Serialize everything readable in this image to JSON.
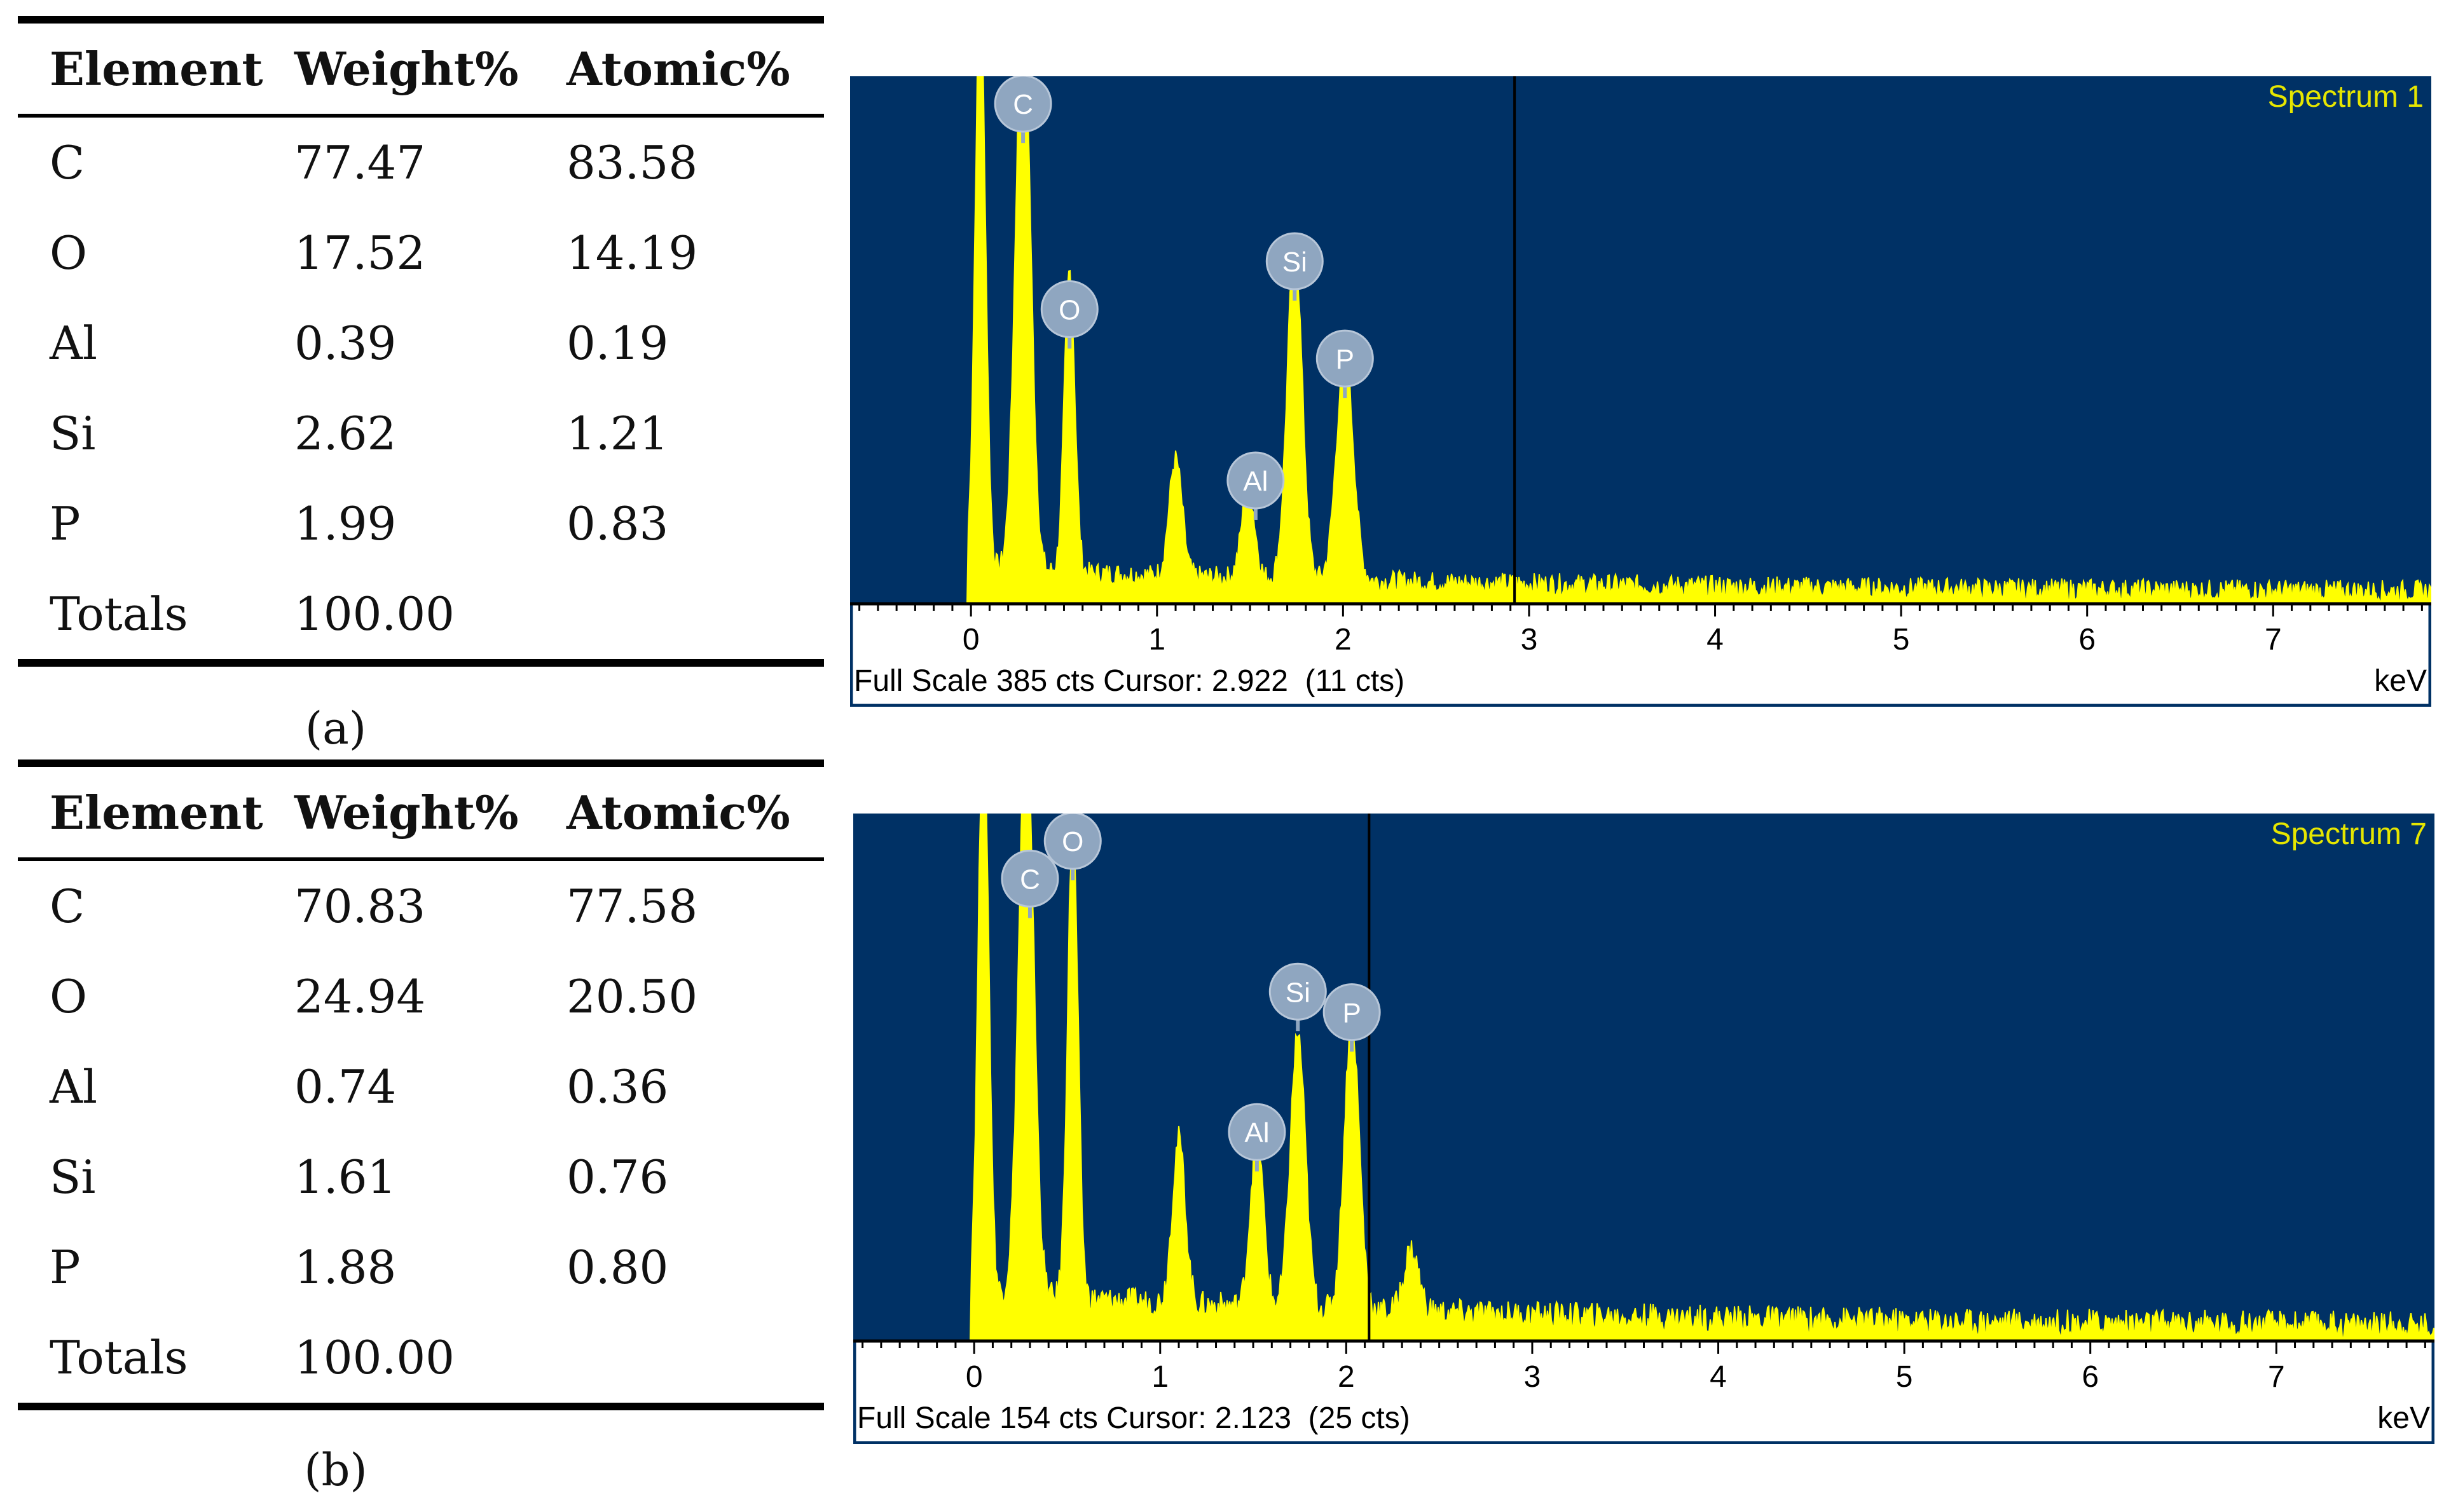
{
  "panels": [
    {
      "caption": "(a)",
      "table": {
        "headers": [
          "Element",
          "Weight%",
          "Atomic%"
        ],
        "rows": [
          {
            "element": "C",
            "weight": "77.47",
            "atomic": "83.58"
          },
          {
            "element": "O",
            "weight": "17.52",
            "atomic": "14.19"
          },
          {
            "element": "Al",
            "weight": "0.39",
            "atomic": "0.19"
          },
          {
            "element": "Si",
            "weight": "2.62",
            "atomic": "1.21"
          },
          {
            "element": "P",
            "weight": "1.99",
            "atomic": "0.83"
          },
          {
            "element": "Totals",
            "weight": "100.00",
            "atomic": ""
          }
        ]
      },
      "spectrum": {
        "title": "Spectrum 1",
        "status": "Full Scale 385 cts Cursor: 2.922  (11 cts)",
        "unit": "keV",
        "cursor": 2.922
      }
    },
    {
      "caption": "(b)",
      "table": {
        "headers": [
          "Element",
          "Weight%",
          "Atomic%"
        ],
        "rows": [
          {
            "element": "C",
            "weight": "70.83",
            "atomic": "77.58"
          },
          {
            "element": "O",
            "weight": "24.94",
            "atomic": "20.50"
          },
          {
            "element": "Al",
            "weight": "0.74",
            "atomic": "0.36"
          },
          {
            "element": "Si",
            "weight": "1.61",
            "atomic": "0.76"
          },
          {
            "element": "P",
            "weight": "1.88",
            "atomic": "0.80"
          },
          {
            "element": "Totals",
            "weight": "100.00",
            "atomic": ""
          }
        ]
      },
      "spectrum": {
        "title": "Spectrum 7",
        "status": "Full Scale 154 cts Cursor: 2.123  (25 cts)",
        "unit": "keV",
        "cursor": 2.123
      }
    }
  ],
  "colors": {
    "plot_bg": "#003165",
    "trace": "#FFFF00",
    "title": "#E6E600",
    "marker_fill": "#8FA6C0"
  },
  "chart_data": [
    {
      "type": "area",
      "title": "Spectrum 1",
      "xlabel": "keV",
      "xticks": [
        0,
        1,
        2,
        3,
        4,
        5,
        6,
        7
      ],
      "xlim": [
        -0.65,
        7.85
      ],
      "ylim": [
        0,
        385
      ],
      "full_scale_cts": 385,
      "cursor": {
        "x": 2.922,
        "cts": 11
      },
      "peaks": [
        {
          "label": "",
          "x": 0.05,
          "y": 420,
          "w": 0.028
        },
        {
          "label": "C",
          "x": 0.28,
          "y": 420,
          "w": 0.04
        },
        {
          "label": "O",
          "x": 0.53,
          "y": 220,
          "w": 0.028
        },
        {
          "label": "",
          "x": 1.1,
          "y": 85,
          "w": 0.035
        },
        {
          "label": "Al",
          "x": 1.49,
          "y": 65,
          "w": 0.035
        },
        {
          "label": "Si",
          "x": 1.74,
          "y": 245,
          "w": 0.04
        },
        {
          "label": "P",
          "x": 2.01,
          "y": 165,
          "w": 0.045
        }
      ],
      "labels": [
        {
          "text": "C",
          "x": 0.28,
          "y": 365
        },
        {
          "text": "O",
          "x": 0.53,
          "y": 215
        },
        {
          "text": "Si",
          "x": 1.74,
          "y": 250
        },
        {
          "text": "P",
          "x": 2.01,
          "y": 179
        },
        {
          "text": "Al",
          "x": 1.53,
          "y": 90
        }
      ]
    },
    {
      "type": "area",
      "title": "Spectrum 7",
      "xlabel": "keV",
      "xticks": [
        0,
        1,
        2,
        3,
        4,
        5,
        6,
        7
      ],
      "xlim": [
        -0.65,
        7.85
      ],
      "ylim": [
        0,
        154
      ],
      "full_scale_cts": 154,
      "cursor": {
        "x": 2.123,
        "cts": 25
      },
      "peaks": [
        {
          "label": "",
          "x": 0.05,
          "y": 170,
          "w": 0.028
        },
        {
          "label": "C",
          "x": 0.28,
          "y": 170,
          "w": 0.04
        },
        {
          "label": "O",
          "x": 0.53,
          "y": 138,
          "w": 0.028
        },
        {
          "label": "",
          "x": 1.1,
          "y": 48,
          "w": 0.035
        },
        {
          "label": "Al",
          "x": 1.52,
          "y": 50,
          "w": 0.035
        },
        {
          "label": "Si",
          "x": 1.74,
          "y": 80,
          "w": 0.04
        },
        {
          "label": "P",
          "x": 2.03,
          "y": 85,
          "w": 0.04
        },
        {
          "label": "",
          "x": 2.35,
          "y": 18,
          "w": 0.04
        }
      ],
      "labels": [
        {
          "text": "C",
          "x": 0.3,
          "y": 135
        },
        {
          "text": "O",
          "x": 0.53,
          "y": 146
        },
        {
          "text": "Si",
          "x": 1.74,
          "y": 102
        },
        {
          "text": "P",
          "x": 2.03,
          "y": 96
        },
        {
          "text": "Al",
          "x": 1.52,
          "y": 61
        }
      ]
    }
  ]
}
